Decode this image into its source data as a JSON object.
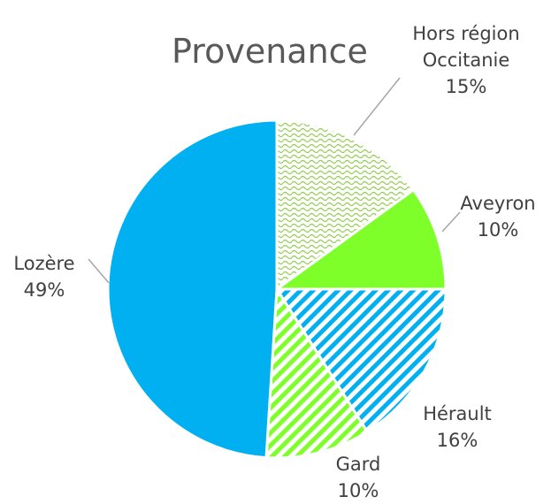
{
  "chart_data": {
    "type": "pie",
    "title": "Provenance",
    "categories": [
      "Hors région Occitanie",
      "Aveyron",
      "Hérault",
      "Gard",
      "Lozère"
    ],
    "values": [
      15,
      10,
      16,
      10,
      49
    ],
    "value_labels": [
      "15%",
      "10%",
      "16%",
      "10%",
      "49%"
    ],
    "colors": [
      "#92d050",
      "#7fff2a",
      "#00b0f0",
      "#7fff2a",
      "#00b0f0"
    ],
    "patterns": [
      "wave",
      "solid",
      "stripes",
      "stripes",
      "solid"
    ]
  }
}
